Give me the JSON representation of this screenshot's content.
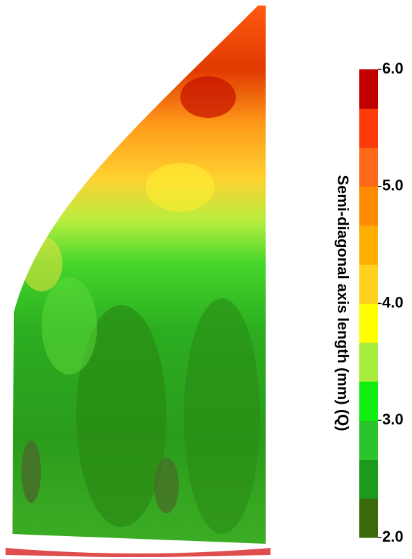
{
  "chart_data": {
    "type": "heatmap",
    "colorbar": {
      "label": "Semi-diagonal axis length (mm) (Q)",
      "lim": [
        2,
        6
      ],
      "ticks": [
        {
          "value": 2,
          "label": "2.0"
        },
        {
          "value": 3,
          "label": "3.0"
        },
        {
          "value": 4,
          "label": "4.0"
        },
        {
          "value": 5,
          "label": "5.0"
        },
        {
          "value": 6,
          "label": "6.0"
        }
      ],
      "colors": [
        "#3b6a0c",
        "#1c9a1c",
        "#2cc42c",
        "#11ee11",
        "#a8ec3c",
        "#ffff00",
        "#ffd21e",
        "#ffae00",
        "#ff8c00",
        "#ff6a1a",
        "#ff3a0a",
        "#c00000"
      ]
    }
  }
}
